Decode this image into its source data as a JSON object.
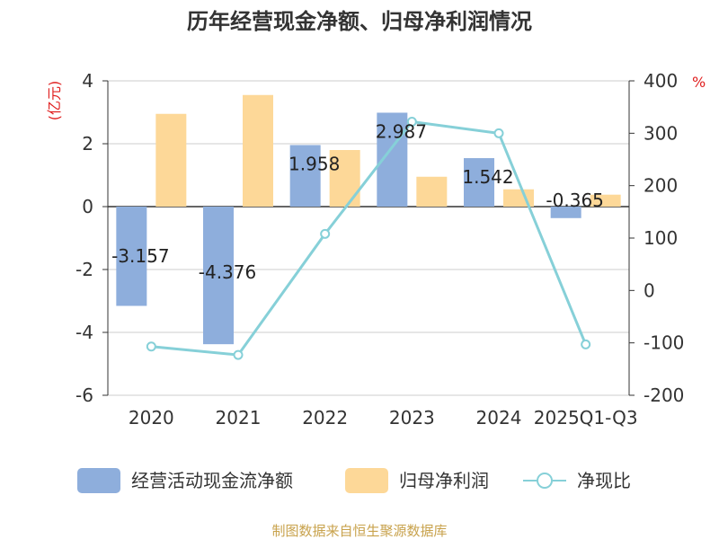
{
  "chart_data": {
    "type": "bar+line",
    "title": "历年经营现金净额、归母净利润情况",
    "categories": [
      "2020",
      "2021",
      "2022",
      "2023",
      "2024",
      "2025Q1-Q3"
    ],
    "series": [
      {
        "name": "经营活动现金流净额",
        "kind": "bar",
        "axis": "left",
        "color": "#8eaedc",
        "values": [
          -3.157,
          -4.376,
          1.958,
          2.987,
          1.542,
          -0.365
        ],
        "labels": [
          "-3.157",
          "-4.376",
          "1.958",
          "2.987",
          "1.542",
          "-0.365"
        ]
      },
      {
        "name": "归母净利润",
        "kind": "bar",
        "axis": "left",
        "color": "#fdd898",
        "values": [
          2.95,
          3.55,
          1.8,
          0.95,
          0.55,
          0.38
        ]
      },
      {
        "name": "净现比",
        "kind": "line",
        "axis": "right",
        "color": "#86d0d8",
        "values": [
          -107,
          -123,
          108,
          322,
          300,
          -103
        ]
      }
    ],
    "y_left": {
      "label": "(亿元)",
      "range": [
        -6,
        4
      ],
      "ticks": [
        4,
        2,
        0,
        -2,
        -4,
        -6
      ]
    },
    "y_right": {
      "label": "%",
      "range": [
        -200,
        400
      ],
      "ticks": [
        400,
        300,
        200,
        100,
        0,
        -100,
        -200
      ]
    },
    "grid": true,
    "legend_position": "bottom"
  },
  "source": "制图数据来自恒生聚源数据库"
}
